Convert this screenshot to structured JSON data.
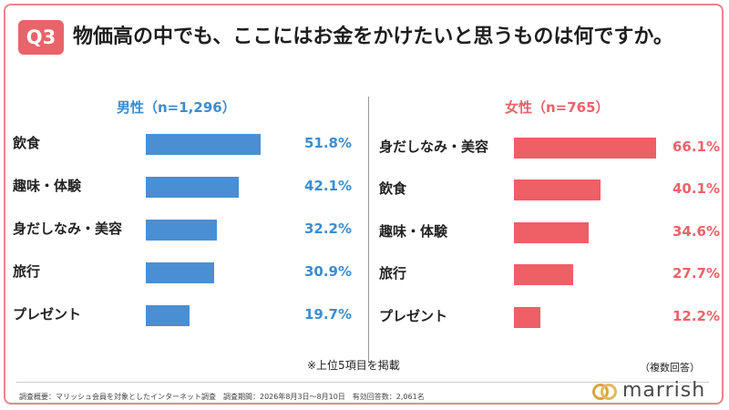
{
  "question": {
    "badge": "Q3",
    "text": "物価高の中でも、ここにはお金をかけたいと思うものは何ですか。"
  },
  "chart_data": [
    {
      "type": "bar",
      "orientation": "horizontal",
      "title": "男性（n=1,296）",
      "categories": [
        "飲食",
        "趣味・体験",
        "身だしなみ・美容",
        "旅行",
        "プレゼント"
      ],
      "values": [
        51.8,
        42.1,
        32.2,
        30.9,
        19.7
      ],
      "value_labels": [
        "51.8%",
        "42.1%",
        "32.2%",
        "30.9%",
        "19.7%"
      ],
      "unit": "%",
      "xlim": [
        0,
        100
      ],
      "color": "#4a8fd3"
    },
    {
      "type": "bar",
      "orientation": "horizontal",
      "title": "女性（n=765）",
      "categories": [
        "身だしなみ・美容",
        "飲食",
        "趣味・体験",
        "旅行",
        "プレゼント"
      ],
      "values": [
        66.1,
        40.1,
        34.6,
        27.7,
        12.2
      ],
      "value_labels": [
        "66.1%",
        "40.1%",
        "34.6%",
        "27.7%",
        "12.2%"
      ],
      "unit": "%",
      "xlim": [
        0,
        100
      ],
      "color": "#ee5f66"
    }
  ],
  "notes": {
    "top5": "※上位5項目を掲載",
    "multiple_answers": "（複数回答）"
  },
  "footer": {
    "survey_info": "調査概要：マリッシュ会員を対象としたインターネット調査　調査期間：2026年8月3日～8月10日　有効回答数：2,061名"
  },
  "logo": {
    "text": "marrish",
    "accent_color": "#d9a441"
  }
}
